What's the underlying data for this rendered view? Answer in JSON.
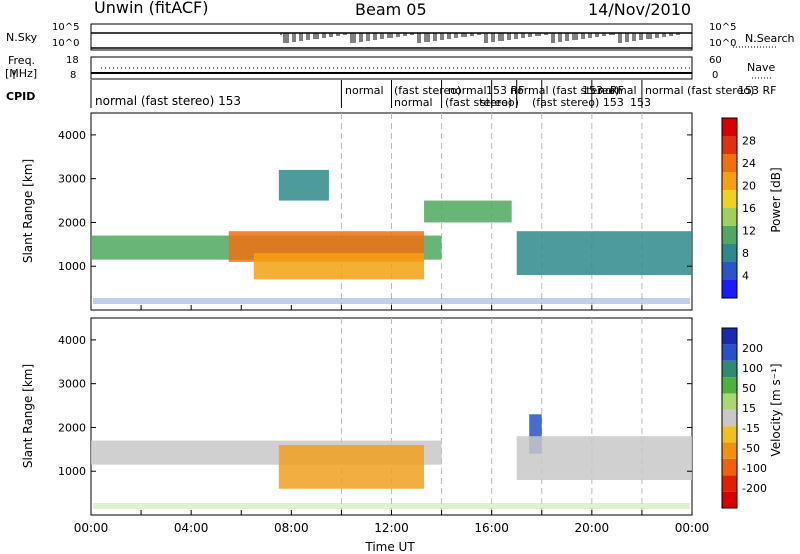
{
  "header": {
    "title": "Unwin (fitACF)",
    "beam": "Beam 05",
    "date": "14/Nov/2010"
  },
  "status_panels": {
    "nsky_label": "N.Sky",
    "nsky_ticks": [
      "10^5",
      "10^0"
    ],
    "nsearch_label": "N.Search",
    "nsearch_ticks": [
      "10^5",
      "10^0"
    ],
    "freq_label_line1": "Freq.",
    "freq_label_line2": "[MHz]",
    "freq_ticks": [
      "18",
      "8"
    ],
    "nave_label": "Nave",
    "nave_ticks": [
      "60",
      "0"
    ],
    "cpid_label": "CPID"
  },
  "cpid_segments": [
    {
      "label": "normal (fast stereo) 153",
      "row": 1
    },
    {
      "label": "normal",
      "row": 0
    },
    {
      "label": "(fast stereo)",
      "row": 0
    },
    {
      "label": "normal",
      "row": 1
    },
    {
      "label": "normal",
      "row": 0
    },
    {
      "label": "(fast stereo)",
      "row": 1
    },
    {
      "label": "153 RF",
      "row": 0
    },
    {
      "label": "stereo)",
      "row": 1
    },
    {
      "label": "normal (fast stereo)",
      "row": 0
    },
    {
      "label": "153",
      "row": 0
    },
    {
      "label": "(fast stereo) 153",
      "row": 1
    },
    {
      "label": "RF",
      "row": 0
    },
    {
      "label": "normal",
      "row": 0
    },
    {
      "label": "153",
      "row": 1
    },
    {
      "label": "normal (fast stereo)",
      "row": 0
    },
    {
      "label": "153 RF",
      "row": 0
    }
  ],
  "chart_data": [
    {
      "type": "heatmap",
      "title": "",
      "xlabel": "",
      "ylabel": "Slant Range [km]",
      "yticks": [
        "1000",
        "2000",
        "3000",
        "4000"
      ],
      "ylim": [
        0,
        4500
      ],
      "xlim_hours": [
        0,
        24
      ],
      "colorbar": {
        "label": "Power [dB]",
        "ticks": [
          "4",
          "8",
          "12",
          "16",
          "20",
          "24",
          "28"
        ],
        "colors": [
          "#1a1aff",
          "#2a55c8",
          "#2e8a8a",
          "#4fa860",
          "#9ed060",
          "#f2d020",
          "#f5a010",
          "#f07010",
          "#e03010",
          "#d80000"
        ]
      },
      "regions": [
        {
          "t0": 0.0,
          "t1": 14.0,
          "r0": 1150,
          "r1": 1700,
          "level": 3
        },
        {
          "t0": 5.5,
          "t1": 13.3,
          "r0": 1100,
          "r1": 1800,
          "level": 7
        },
        {
          "t0": 6.5,
          "t1": 13.3,
          "r0": 700,
          "r1": 1300,
          "level": 6
        },
        {
          "t0": 7.5,
          "t1": 9.5,
          "r0": 2500,
          "r1": 3200,
          "level": 2
        },
        {
          "t0": 13.3,
          "t1": 16.8,
          "r0": 2000,
          "r1": 2500,
          "level": 3
        },
        {
          "t0": 17.0,
          "t1": 24.0,
          "r0": 800,
          "r1": 1800,
          "level": 2
        }
      ]
    },
    {
      "type": "heatmap",
      "title": "",
      "xlabel": "Time UT",
      "ylabel": "Slant Range [km]",
      "yticks": [
        "1000",
        "2000",
        "3000",
        "4000"
      ],
      "ylim": [
        0,
        4500
      ],
      "xlim_hours": [
        0,
        24
      ],
      "xticks": [
        "00:00",
        "04:00",
        "08:00",
        "12:00",
        "16:00",
        "20:00",
        "00:00"
      ],
      "colorbar": {
        "label": "Velocity [m s⁻¹]",
        "ticks": [
          "200",
          "100",
          "50",
          "15",
          "-15",
          "-50",
          "-100",
          "-200"
        ],
        "colors": [
          "#1a2ab0",
          "#2a50c8",
          "#2e8a70",
          "#4fb040",
          "#a8d870",
          "#c8c8c8",
          "#f0c020",
          "#f09010",
          "#f06010",
          "#e02000",
          "#d80000"
        ]
      },
      "regions": [
        {
          "t0": 0.0,
          "t1": 14.0,
          "r0": 1150,
          "r1": 1700,
          "level": "gray"
        },
        {
          "t0": 7.5,
          "t1": 13.3,
          "r0": 600,
          "r1": 1600,
          "level": "orange"
        },
        {
          "t0": 17.5,
          "t1": 18.0,
          "r0": 1400,
          "r1": 2300,
          "level": "blue"
        },
        {
          "t0": 17.0,
          "t1": 24.0,
          "r0": 800,
          "r1": 1800,
          "level": "gray"
        }
      ]
    }
  ]
}
